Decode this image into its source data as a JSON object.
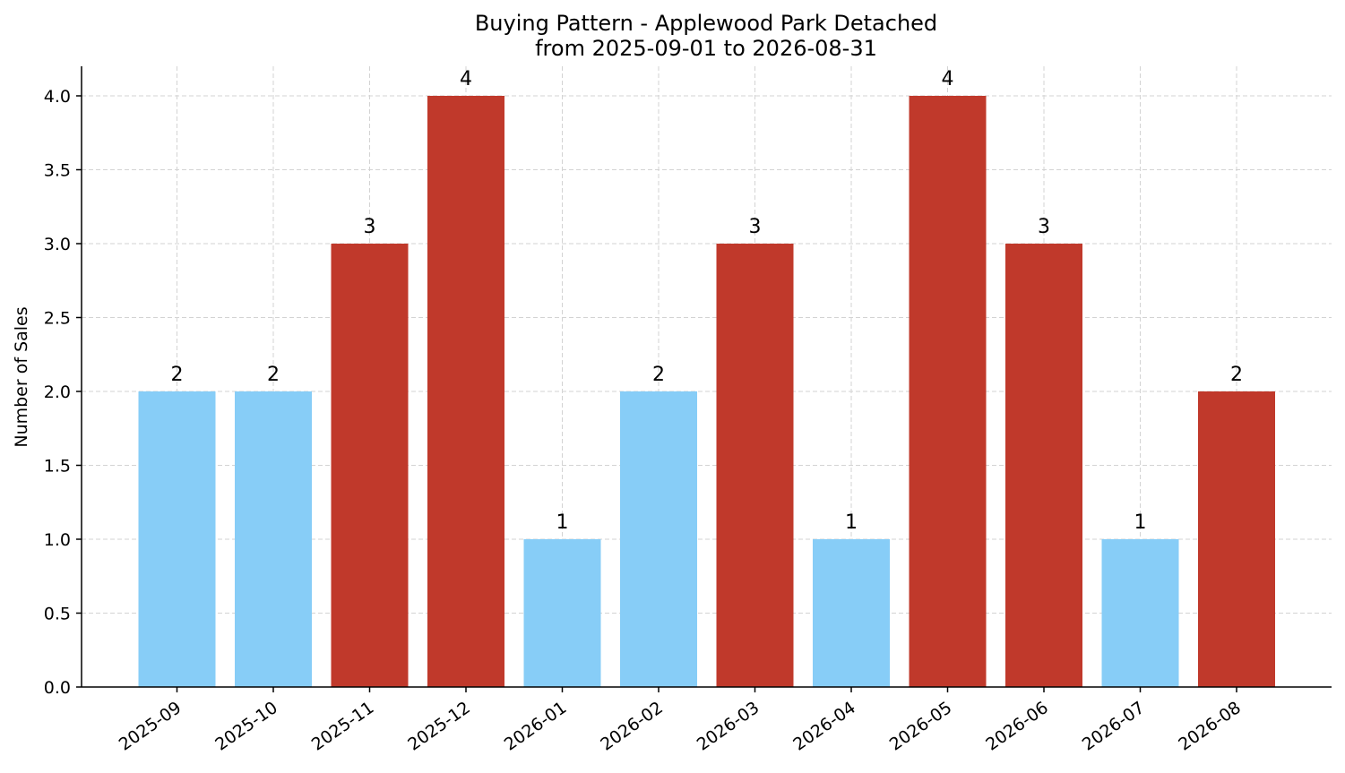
{
  "chart_data": {
    "type": "bar",
    "title_line1": "Buying Pattern - Applewood Park Detached",
    "title_line2": "from 2025-09-01 to 2026-08-31",
    "xlabel": "",
    "ylabel": "Number of Sales",
    "ylim": [
      0,
      4.2
    ],
    "yticks": [
      "0.0",
      "0.5",
      "1.0",
      "1.5",
      "2.0",
      "2.5",
      "3.0",
      "3.5",
      "4.0"
    ],
    "categories": [
      "2025-09",
      "2025-10",
      "2025-11",
      "2025-12",
      "2026-01",
      "2026-02",
      "2026-03",
      "2026-04",
      "2026-05",
      "2026-06",
      "2026-07",
      "2026-08"
    ],
    "values": [
      2,
      2,
      3,
      4,
      1,
      2,
      3,
      1,
      4,
      3,
      1,
      2
    ],
    "bar_colors": [
      "#87cdf7",
      "#87cdf7",
      "#c0392b",
      "#c0392b",
      "#87cdf7",
      "#87cdf7",
      "#c0392b",
      "#87cdf7",
      "#c0392b",
      "#c0392b",
      "#87cdf7",
      "#c0392b"
    ],
    "grid": true,
    "legend": "none"
  }
}
